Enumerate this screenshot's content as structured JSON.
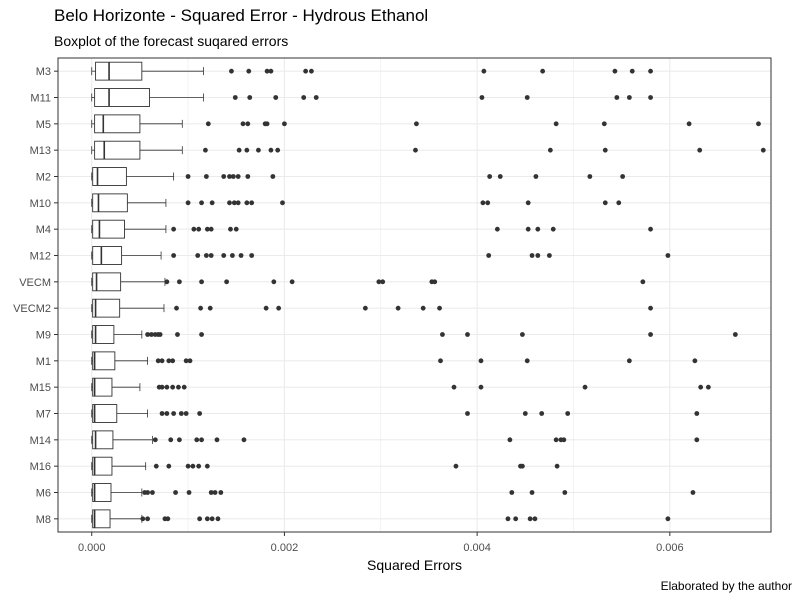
{
  "chart_data": {
    "type": "boxplot",
    "orientation": "horizontal",
    "title": "Belo Horizonte - Squared Error - Hydrous Ethanol",
    "subtitle": "Boxplot of the forecast suqared errors",
    "caption": "Elaborated by the author",
    "xlabel": "Squared Errors",
    "ylabel": "",
    "xlim": [
      -0.00035,
      0.00705
    ],
    "x_ticks": [
      0,
      0.002,
      0.004,
      0.006
    ],
    "x_tick_labels": [
      "0.000",
      "0.002",
      "0.004",
      "0.006"
    ],
    "grid": true,
    "colors": {
      "box_stroke": "#333333",
      "box_fill": "#ffffff",
      "outlier": "#333333",
      "grid": "#ebebeb",
      "panel_border": "#333333"
    },
    "categories": [
      "M3",
      "M11",
      "M5",
      "M13",
      "M2",
      "M10",
      "M4",
      "M12",
      "VECM",
      "VECM2",
      "M9",
      "M1",
      "M15",
      "M7",
      "M14",
      "M16",
      "M6",
      "M8"
    ],
    "boxes": [
      {
        "name": "M3",
        "min": 0.0,
        "q1": 4e-05,
        "median": 0.00018,
        "q3": 0.00052,
        "max": 0.00116,
        "outliers": [
          0.00145,
          0.00163,
          0.00182,
          0.00186,
          0.00222,
          0.00228,
          0.00407,
          0.00468,
          0.00543,
          0.00561,
          0.0058
        ]
      },
      {
        "name": "M11",
        "min": 0.0,
        "q1": 3e-05,
        "median": 0.00018,
        "q3": 0.0006,
        "max": 0.00116,
        "outliers": [
          0.00149,
          0.00164,
          0.00191,
          0.0022,
          0.00233,
          0.00405,
          0.00452,
          0.00545,
          0.00558,
          0.0058
        ]
      },
      {
        "name": "M5",
        "min": 0.0,
        "q1": 3e-05,
        "median": 0.00012,
        "q3": 0.0005,
        "max": 0.00094,
        "outliers": [
          0.00121,
          0.00157,
          0.00162,
          0.0018,
          0.00182,
          0.002,
          0.00337,
          0.00482,
          0.00532,
          0.0062,
          0.00692
        ]
      },
      {
        "name": "M13",
        "min": 0.0,
        "q1": 3e-05,
        "median": 0.00013,
        "q3": 0.0005,
        "max": 0.00094,
        "outliers": [
          0.00118,
          0.00153,
          0.00161,
          0.00173,
          0.00186,
          0.00193,
          0.00336,
          0.00476,
          0.00533,
          0.00631,
          0.00697
        ]
      },
      {
        "name": "M2",
        "min": 0.0,
        "q1": 1e-05,
        "median": 6e-05,
        "q3": 0.00036,
        "max": 0.00085,
        "outliers": [
          0.001,
          0.00119,
          0.00137,
          0.00143,
          0.00147,
          0.00152,
          0.00162,
          0.00188,
          0.00413,
          0.00424,
          0.00461,
          0.00517,
          0.00551
        ]
      },
      {
        "name": "M10",
        "min": 0.0,
        "q1": 1e-05,
        "median": 7e-05,
        "q3": 0.00037,
        "max": 0.00077,
        "outliers": [
          0.001,
          0.00114,
          0.00125,
          0.00143,
          0.00148,
          0.00152,
          0.00161,
          0.00166,
          0.00198,
          0.00406,
          0.00411,
          0.00453,
          0.00533,
          0.00547
        ]
      },
      {
        "name": "M4",
        "min": 0.0,
        "q1": 1e-05,
        "median": 8e-05,
        "q3": 0.00034,
        "max": 0.00077,
        "outliers": [
          0.00085,
          0.00106,
          0.00111,
          0.0012,
          0.00124,
          0.00144,
          0.0015,
          0.00421,
          0.00453,
          0.00463,
          0.00479,
          0.0058
        ]
      },
      {
        "name": "M12",
        "min": 0.0,
        "q1": 1e-05,
        "median": 0.0001,
        "q3": 0.00031,
        "max": 0.00072,
        "outliers": [
          0.00085,
          0.0011,
          0.00119,
          0.00124,
          0.00137,
          0.00146,
          0.00155,
          0.00166,
          0.00412,
          0.00457,
          0.00463,
          0.00475,
          0.00598
        ]
      },
      {
        "name": "VECM",
        "min": 0.0,
        "q1": 1e-05,
        "median": 5e-05,
        "q3": 0.0003,
        "max": 0.00076,
        "outliers": [
          0.00078,
          0.00091,
          0.00114,
          0.0014,
          0.00189,
          0.00208,
          0.00298,
          0.00302,
          0.00353,
          0.00356,
          0.00572
        ]
      },
      {
        "name": "VECM2",
        "min": 0.0,
        "q1": 1e-05,
        "median": 4e-05,
        "q3": 0.00029,
        "max": 0.00075,
        "outliers": [
          0.00088,
          0.00113,
          0.00123,
          0.00181,
          0.00194,
          0.00284,
          0.00318,
          0.00344,
          0.00361,
          0.0058
        ]
      },
      {
        "name": "M9",
        "min": 0.0,
        "q1": 1e-05,
        "median": 4e-05,
        "q3": 0.00023,
        "max": 0.00052,
        "outliers": [
          0.00058,
          0.00062,
          0.00066,
          0.00069,
          0.00071,
          0.00089,
          0.00114,
          0.00364,
          0.0039,
          0.00447,
          0.0058,
          0.00668
        ]
      },
      {
        "name": "M1",
        "min": 0.0,
        "q1": 1e-05,
        "median": 3e-05,
        "q3": 0.00024,
        "max": 0.00058,
        "outliers": [
          0.00069,
          0.00073,
          0.0008,
          0.00084,
          0.00098,
          0.00102,
          0.00362,
          0.00404,
          0.00452,
          0.00558,
          0.00626
        ]
      },
      {
        "name": "M15",
        "min": 0.0,
        "q1": 1e-05,
        "median": 3e-05,
        "q3": 0.00021,
        "max": 0.0005,
        "outliers": [
          0.0007,
          0.00073,
          0.00078,
          0.00084,
          0.0009,
          0.00096,
          0.00376,
          0.00404,
          0.00512,
          0.00632,
          0.0064
        ]
      },
      {
        "name": "M7",
        "min": 0.0,
        "q1": 1e-05,
        "median": 3e-05,
        "q3": 0.00026,
        "max": 0.00058,
        "outliers": [
          0.00073,
          0.00078,
          0.00085,
          0.00093,
          0.00098,
          0.00112,
          0.0039,
          0.0045,
          0.00467,
          0.00494,
          0.00628
        ]
      },
      {
        "name": "M14",
        "min": 0.0,
        "q1": 1e-05,
        "median": 4e-05,
        "q3": 0.00022,
        "max": 0.00063,
        "outliers": [
          0.00066,
          0.00082,
          0.00091,
          0.00109,
          0.00114,
          0.0013,
          0.00158,
          0.00434,
          0.00482,
          0.00487,
          0.0049,
          0.00628
        ]
      },
      {
        "name": "M16",
        "min": 0.0,
        "q1": 1e-05,
        "median": 3e-05,
        "q3": 0.00021,
        "max": 0.00056,
        "outliers": [
          0.00067,
          0.0008,
          0.001,
          0.00105,
          0.00111,
          0.0012,
          0.00378,
          0.00445,
          0.00447,
          0.00483
        ]
      },
      {
        "name": "M6",
        "min": 0.0,
        "q1": 1e-05,
        "median": 3e-05,
        "q3": 0.0002,
        "max": 0.00052,
        "outliers": [
          0.00055,
          0.00058,
          0.00063,
          0.00087,
          0.00101,
          0.00124,
          0.00128,
          0.00134,
          0.00436,
          0.00457,
          0.00491,
          0.00624
        ]
      },
      {
        "name": "M8",
        "min": 0.0,
        "q1": 1e-05,
        "median": 3e-05,
        "q3": 0.00019,
        "max": 0.00052,
        "outliers": [
          0.00053,
          0.00058,
          0.00076,
          0.00079,
          0.00112,
          0.0012,
          0.00125,
          0.00131,
          0.00432,
          0.0044,
          0.00455,
          0.0046,
          0.00598
        ]
      }
    ]
  }
}
